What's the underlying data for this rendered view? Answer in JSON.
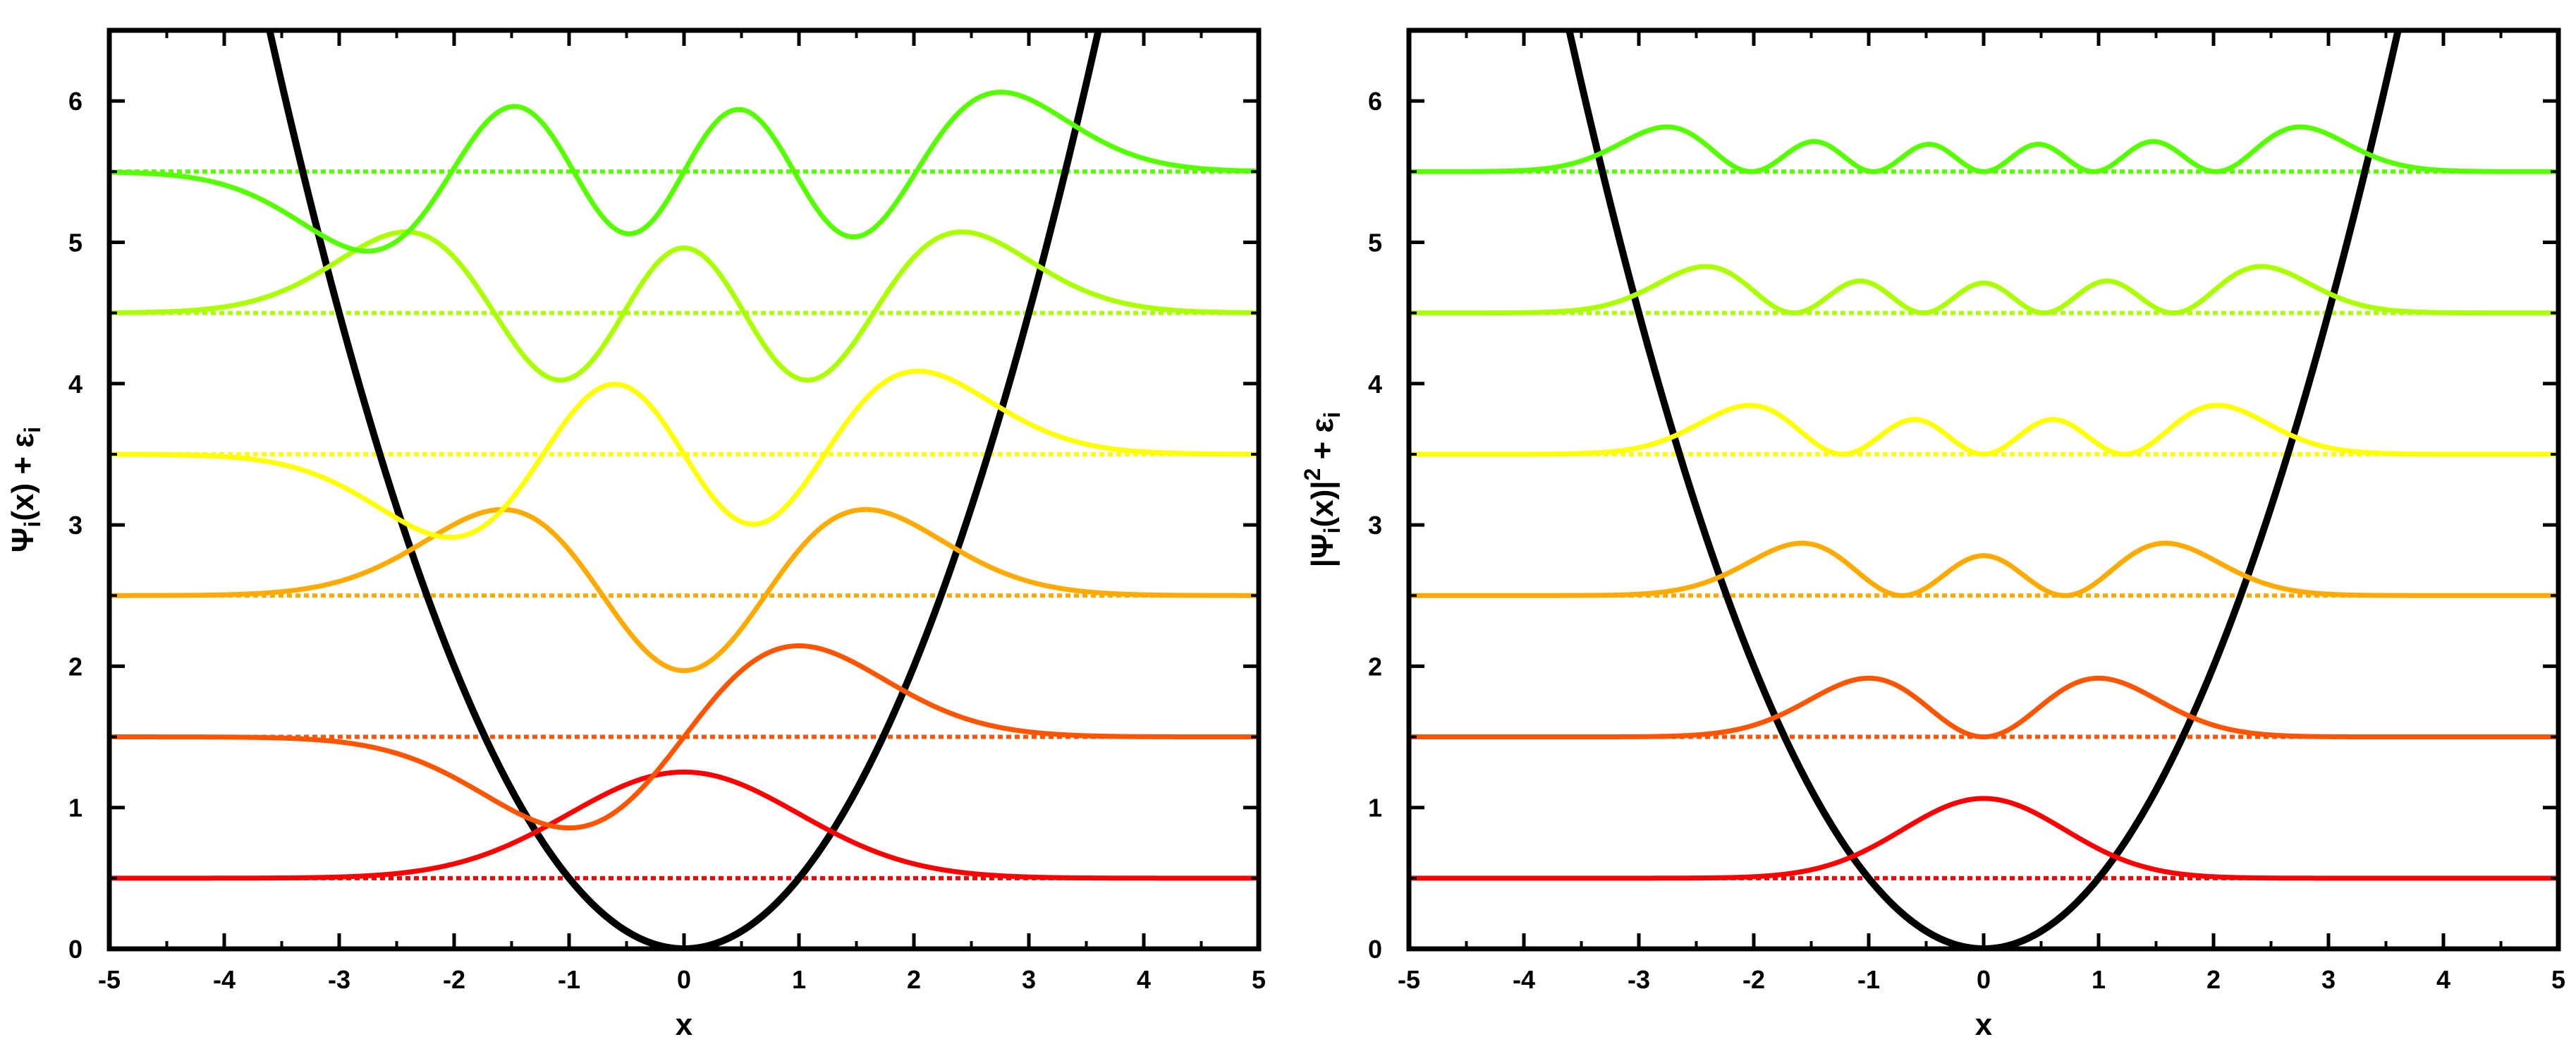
{
  "chart_data": [
    {
      "id": "left",
      "type": "line",
      "title": "",
      "xlabel": "x",
      "ylabel": {
        "main": "Ψ",
        "sub": "i",
        "after": "(x) + ε",
        "sub2": "i"
      },
      "xlim": [
        -5,
        5
      ],
      "ylim": [
        0,
        6.5
      ],
      "xticks": [
        -5,
        -4,
        -3,
        -2,
        -1,
        0,
        1,
        2,
        3,
        4,
        5
      ],
      "yticks": [
        0,
        1,
        2,
        3,
        4,
        5,
        6
      ],
      "potential": {
        "name": "V(x) = x²/2",
        "formula": "0.5*x^2",
        "color": "#000000"
      },
      "mode": "psi",
      "amplitude": 1.0,
      "levels": [
        {
          "n": 0,
          "energy": 0.5,
          "color": "#ff0000"
        },
        {
          "n": 1,
          "energy": 1.5,
          "color": "#ff5500"
        },
        {
          "n": 2,
          "energy": 2.5,
          "color": "#ffaa00"
        },
        {
          "n": 3,
          "energy": 3.5,
          "color": "#ffff00"
        },
        {
          "n": 4,
          "energy": 4.5,
          "color": "#aaff00"
        },
        {
          "n": 5,
          "energy": 5.5,
          "color": "#55ff00"
        }
      ],
      "grid": false,
      "legend": "none"
    },
    {
      "id": "right",
      "type": "line",
      "title": "",
      "xlabel": "x",
      "ylabel": {
        "pre": "|Ψ",
        "sub": "i",
        "after": "(x)|",
        "sup": "2",
        "tail": " + ε",
        "sub2": "i"
      },
      "xlim": [
        -5,
        5
      ],
      "ylim": [
        0,
        6.5
      ],
      "xticks": [
        -5,
        -4,
        -3,
        -2,
        -1,
        0,
        1,
        2,
        3,
        4,
        5
      ],
      "yticks": [
        0,
        1,
        2,
        3,
        4,
        5,
        6
      ],
      "potential": {
        "name": "V(x) = x²/2",
        "formula": "0.5*x^2",
        "color": "#000000"
      },
      "mode": "psi_squared",
      "amplitude": 1.0,
      "levels": [
        {
          "n": 0,
          "energy": 0.5,
          "color": "#ff0000"
        },
        {
          "n": 1,
          "energy": 1.5,
          "color": "#ff5500"
        },
        {
          "n": 2,
          "energy": 2.5,
          "color": "#ffaa00"
        },
        {
          "n": 3,
          "energy": 3.5,
          "color": "#ffff00"
        },
        {
          "n": 4,
          "energy": 4.5,
          "color": "#aaff00"
        },
        {
          "n": 5,
          "energy": 5.5,
          "color": "#55ff00"
        }
      ],
      "grid": false,
      "legend": "none"
    }
  ]
}
